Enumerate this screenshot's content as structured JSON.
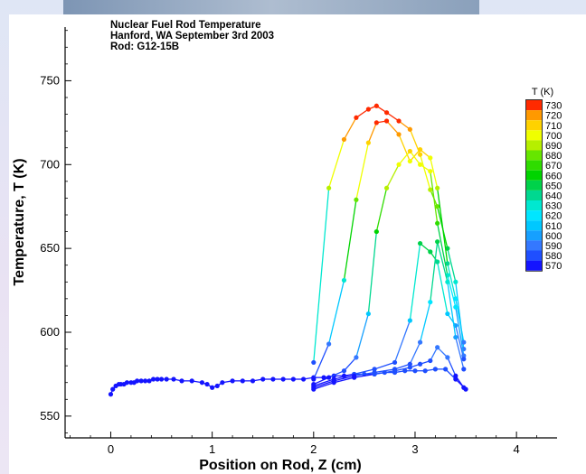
{
  "chart_data": {
    "type": "line",
    "title_lines": [
      "Nuclear Fuel Rod Temperature",
      "Hanford, WA September 3rd 2003",
      "Rod: G12-15B"
    ],
    "xlabel": "Position on Rod, Z (cm)",
    "ylabel": "Temperature, T (K)",
    "xlim": [
      -0.45,
      4.4
    ],
    "ylim": [
      537,
      782
    ],
    "xticks": [
      0,
      1,
      2,
      3,
      4
    ],
    "yticks": [
      550,
      600,
      650,
      700,
      750
    ],
    "grid": false,
    "legend": {
      "title": "T (K)",
      "placement": "right",
      "levels": [
        730,
        720,
        710,
        700,
        690,
        680,
        670,
        660,
        650,
        640,
        630,
        620,
        610,
        600,
        590,
        580,
        570
      ],
      "colors": [
        "#ff2a00",
        "#ff9900",
        "#ffd200",
        "#f0ff00",
        "#b6ef00",
        "#66e600",
        "#2fdc00",
        "#00d400",
        "#00d24a",
        "#00d890",
        "#00e8d0",
        "#00e6ff",
        "#00c8ff",
        "#16a0ff",
        "#3478ff",
        "#1f4fff",
        "#1414ff"
      ]
    },
    "base_series": {
      "x": [
        0.0,
        0.02,
        0.05,
        0.08,
        0.1,
        0.13,
        0.16,
        0.2,
        0.23,
        0.26,
        0.3,
        0.34,
        0.38,
        0.42,
        0.46,
        0.5,
        0.55,
        0.62,
        0.7,
        0.8,
        0.9,
        0.95,
        1.0,
        1.05,
        1.1,
        1.2,
        1.3,
        1.4,
        1.5,
        1.6,
        1.7,
        1.8,
        1.9,
        2.0,
        2.1,
        2.2,
        2.3,
        2.4,
        2.5,
        2.6,
        2.7,
        2.8,
        2.9,
        3.0,
        3.1,
        3.2,
        3.3,
        3.4,
        3.5
      ],
      "y": [
        563,
        566,
        568,
        569,
        569,
        569,
        570,
        570,
        570,
        571,
        571,
        571,
        571,
        572,
        572,
        572,
        572,
        572,
        571,
        571,
        570,
        569,
        567,
        568,
        570,
        571,
        571,
        571,
        572,
        572,
        572,
        572,
        572,
        573,
        573,
        574,
        574,
        575,
        575,
        575,
        576,
        576,
        577,
        577,
        577,
        578,
        578,
        572,
        566
      ]
    },
    "series": [
      {
        "x": [
          2.0,
          2.15,
          2.3,
          2.42,
          2.54,
          2.62,
          2.72,
          2.84,
          2.95,
          3.05,
          3.15,
          3.22,
          3.32,
          3.4,
          3.48
        ],
        "y": [
          582,
          686,
          715,
          728,
          733,
          735,
          731,
          726,
          721,
          706,
          685,
          675,
          650,
          630,
          590
        ]
      },
      {
        "x": [
          2.0,
          2.15,
          2.3,
          2.42,
          2.54,
          2.62,
          2.72,
          2.84,
          2.95,
          3.05,
          3.15,
          3.22,
          3.32,
          3.4,
          3.48
        ],
        "y": [
          572,
          593,
          631,
          679,
          713,
          725,
          726,
          718,
          702,
          709,
          704,
          686,
          641,
          620,
          594
        ]
      },
      {
        "x": [
          2.0,
          2.15,
          2.3,
          2.42,
          2.54,
          2.62,
          2.72,
          2.84,
          2.95,
          3.05,
          3.15,
          3.22,
          3.32,
          3.4,
          3.48
        ],
        "y": [
          569,
          573,
          577,
          585,
          611,
          660,
          686,
          700,
          708,
          700,
          696,
          665,
          634,
          615,
          586
        ]
      },
      {
        "x": [
          2.0,
          2.2,
          2.4,
          2.6,
          2.8,
          2.95,
          3.05,
          3.15,
          3.22,
          3.32,
          3.4,
          3.48
        ],
        "y": [
          568,
          572,
          575,
          578,
          582,
          607,
          653,
          648,
          642,
          611,
          604,
          584
        ]
      },
      {
        "x": [
          2.0,
          2.2,
          2.4,
          2.6,
          2.8,
          2.95,
          3.05,
          3.15,
          3.22,
          3.32,
          3.4,
          3.48
        ],
        "y": [
          567,
          571,
          574,
          576,
          578,
          581,
          594,
          618,
          654,
          630,
          597,
          578
        ]
      },
      {
        "x": [
          2.0,
          2.2,
          2.4,
          2.6,
          2.8,
          2.95,
          3.05,
          3.15,
          3.22,
          3.32,
          3.4,
          3.48
        ],
        "y": [
          566,
          570,
          573,
          575,
          577,
          579,
          581,
          583,
          591,
          585,
          574,
          567
        ]
      }
    ]
  }
}
